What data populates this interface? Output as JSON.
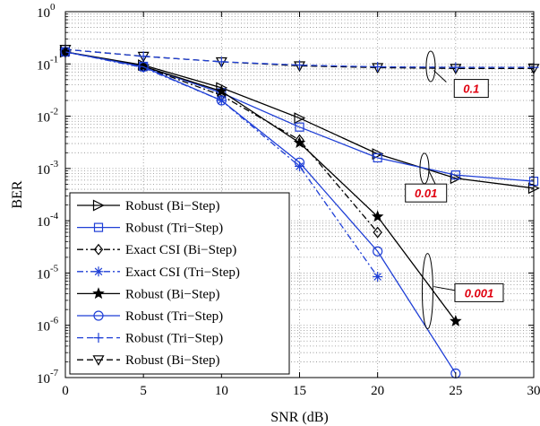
{
  "chart_data": {
    "type": "line",
    "title": "",
    "xlabel": "SNR (dB)",
    "ylabel": "BER",
    "xlim": [
      0,
      30
    ],
    "ylim": [
      1e-07,
      1
    ],
    "yscale": "log",
    "grid": true,
    "legend_position": "bottom-left",
    "x_ticks": [
      "0",
      "5",
      "10",
      "15",
      "20",
      "25",
      "30"
    ],
    "y_ticks": [
      {
        "base": "10",
        "exp": "0"
      },
      {
        "base": "10",
        "exp": "-1"
      },
      {
        "base": "10",
        "exp": "-2"
      },
      {
        "base": "10",
        "exp": "-3"
      },
      {
        "base": "10",
        "exp": "-4"
      },
      {
        "base": "10",
        "exp": "-5"
      },
      {
        "base": "10",
        "exp": "-6"
      },
      {
        "base": "10",
        "exp": "-7"
      }
    ],
    "series": [
      {
        "name": "Robust (Bi−Step)",
        "color": "#000000",
        "dash": "solid",
        "marker": "triangle-right",
        "x": [
          0,
          5,
          10,
          15,
          20,
          25,
          30
        ],
        "y": [
          0.17,
          0.095,
          0.035,
          0.0092,
          0.0019,
          0.00065,
          0.00042
        ]
      },
      {
        "name": "Robust (Tri−Step)",
        "color": "#1f3fd6",
        "dash": "solid",
        "marker": "square",
        "x": [
          0,
          5,
          10,
          15,
          20,
          25,
          30
        ],
        "y": [
          0.17,
          0.09,
          0.028,
          0.0062,
          0.0016,
          0.00075,
          0.00057
        ]
      },
      {
        "name": "Exact CSI (Bi−Step)",
        "color": "#000000",
        "dash": "dashdot",
        "marker": "diamond",
        "x": [
          0,
          5,
          10,
          15,
          20
        ],
        "y": [
          0.17,
          0.088,
          0.025,
          0.0035,
          6e-05
        ]
      },
      {
        "name": "Exact CSI (Tri−Step)",
        "color": "#1f3fd6",
        "dash": "dashdot",
        "marker": "asterisk",
        "x": [
          0,
          5,
          10,
          15,
          20
        ],
        "y": [
          0.17,
          0.085,
          0.02,
          0.0011,
          8.5e-06
        ]
      },
      {
        "name": "Robust (Bi−Step)",
        "color": "#000000",
        "dash": "solid",
        "marker": "star",
        "x": [
          0,
          5,
          10,
          15,
          20,
          25
        ],
        "y": [
          0.17,
          0.09,
          0.03,
          0.0031,
          0.00012,
          1.2e-06
        ]
      },
      {
        "name": "Robust (Tri−Step)",
        "color": "#1f3fd6",
        "dash": "solid",
        "marker": "circle",
        "x": [
          0,
          5,
          10,
          15,
          20,
          25
        ],
        "y": [
          0.17,
          0.088,
          0.02,
          0.0013,
          2.6e-05,
          1.2e-07
        ]
      },
      {
        "name": "Robust (Tri−Step)",
        "color": "#1f3fd6",
        "dash": "dashed",
        "marker": "plus",
        "x": [
          0,
          5,
          10,
          15,
          20,
          25,
          30
        ],
        "y": [
          0.19,
          0.14,
          0.11,
          0.095,
          0.088,
          0.086,
          0.086
        ]
      },
      {
        "name": "Robust (Bi−Step)",
        "color": "#000000",
        "dash": "dashed",
        "marker": "triangle-down",
        "x": [
          0,
          5,
          10,
          15,
          20,
          25,
          30
        ],
        "y": [
          0.19,
          0.14,
          0.11,
          0.092,
          0.085,
          0.082,
          0.082
        ]
      }
    ],
    "annotations": [
      {
        "text": "0.1",
        "x": 26,
        "y": 0.034
      },
      {
        "text": "0.01",
        "x": 23.1,
        "y": 0.00034
      },
      {
        "text": "0.001",
        "x": 26.5,
        "y": 4.2e-06
      }
    ]
  }
}
